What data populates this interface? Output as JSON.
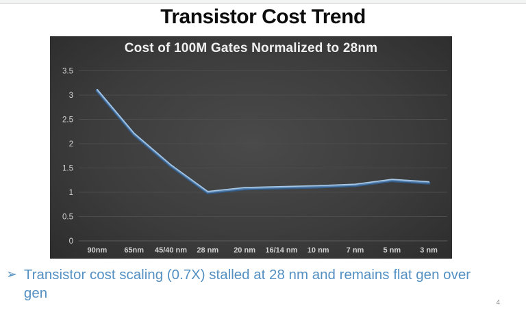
{
  "slide": {
    "title": "Transistor Cost Trend",
    "page_number": "4",
    "bullet": {
      "marker": "➢",
      "text": "Transistor cost scaling (0.7X) stalled at 28 nm and remains flat gen over gen"
    }
  },
  "chart_data": {
    "type": "line",
    "title": "Cost of 100M Gates Normalized to 28nm",
    "categories": [
      "90nm",
      "65nm",
      "45/40 nm",
      "28 nm",
      "20 nm",
      "16/14 nm",
      "10 nm",
      "7 nm",
      "5 nm",
      "3 nm"
    ],
    "values": [
      3.1,
      2.2,
      1.55,
      1.0,
      1.08,
      1.1,
      1.12,
      1.15,
      1.25,
      1.2
    ],
    "xlabel": "",
    "ylabel": "",
    "ylim": [
      0,
      3.5
    ],
    "ytick_step": 0.5,
    "grid": true,
    "legend": "none",
    "colors": {
      "line": "#5d8ab8",
      "line_dark": "#335a85",
      "line_light": "#a7c7e5",
      "grid": "#4c4c4c",
      "axis": "#5c5c5c",
      "tick_label": "#d4d4d4",
      "chart_bg": "#3c3c3c",
      "chart_title": "#f0f0f0",
      "bullet_text": "#5590c2",
      "slide_title": "#0c0c0c"
    }
  }
}
